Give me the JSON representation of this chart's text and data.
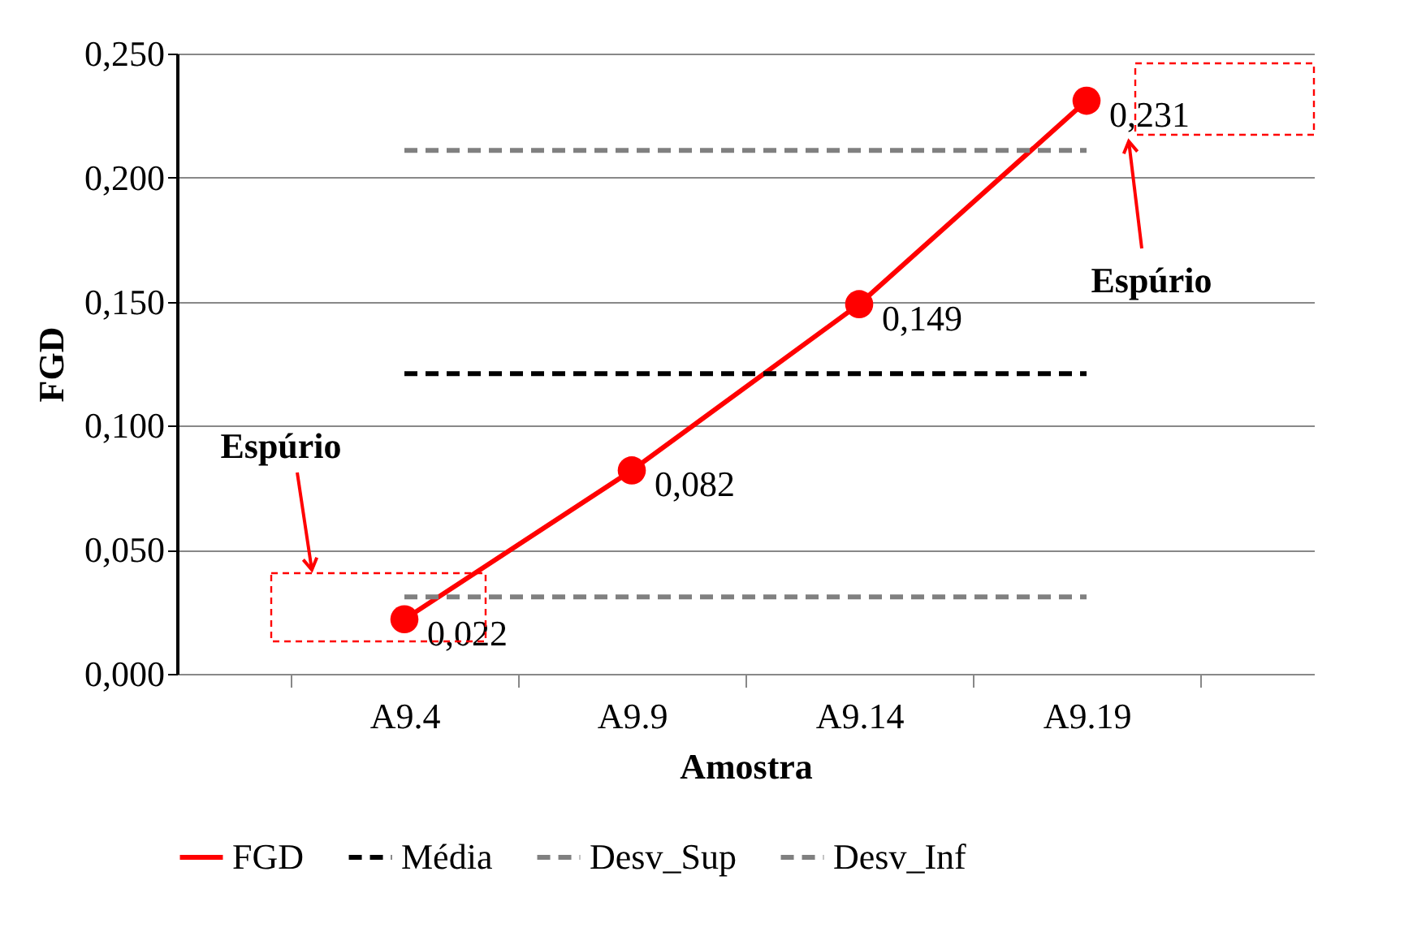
{
  "chart_data": {
    "type": "line",
    "xlabel": "Amostra",
    "ylabel": "FGD",
    "categories": [
      "A9.4",
      "A9.9",
      "A9.14",
      "A9.19"
    ],
    "series": [
      {
        "name": "FGD",
        "color": "#ff0000",
        "values": [
          0.022,
          0.082,
          0.149,
          0.231
        ],
        "marker": "circle",
        "line_style": "solid",
        "value_labels": [
          "0,022",
          "0,082",
          "0,149",
          "0,231"
        ]
      },
      {
        "name": "Média",
        "color": "#000000",
        "values": [
          0.121,
          0.121,
          0.121,
          0.121
        ],
        "line_style": "dashed"
      },
      {
        "name": "Desv_Sup",
        "color": "#808080",
        "values": [
          0.211,
          0.211,
          0.211,
          0.211
        ],
        "line_style": "dashed"
      },
      {
        "name": "Desv_Inf",
        "color": "#808080",
        "values": [
          0.031,
          0.031,
          0.031,
          0.031
        ],
        "line_style": "dashed"
      }
    ],
    "ylim": [
      0,
      0.25
    ],
    "yticks": [
      {
        "value": 0,
        "label": "0,000"
      },
      {
        "value": 0.05,
        "label": "0,050"
      },
      {
        "value": 0.1,
        "label": "0,100"
      },
      {
        "value": 0.15,
        "label": "0,150"
      },
      {
        "value": 0.2,
        "label": "0,200"
      },
      {
        "value": 0.25,
        "label": "0,250"
      }
    ],
    "grid": "y",
    "legend": "bottom",
    "annotations": [
      "Espúrio",
      "Espúrio"
    ]
  }
}
